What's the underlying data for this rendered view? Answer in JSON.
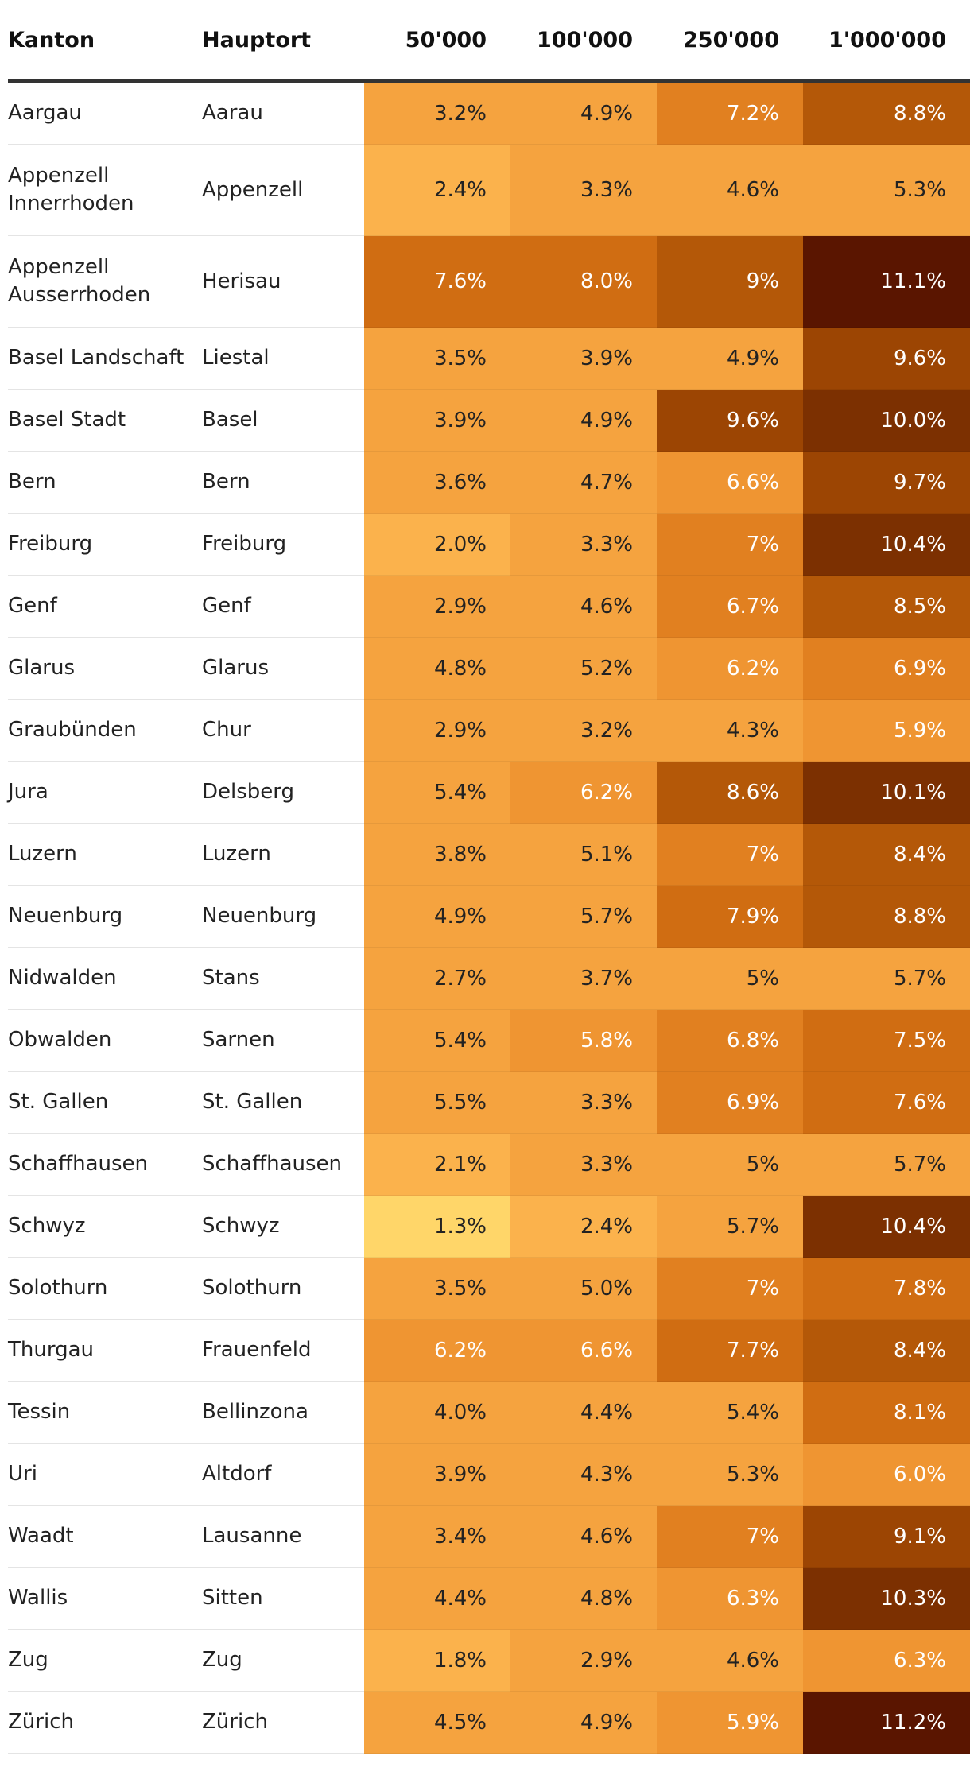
{
  "chart_data": {
    "type": "table",
    "columns": [
      "Kanton",
      "Hauptort",
      "50'000",
      "100'000",
      "250'000",
      "1'000'000"
    ],
    "rows": [
      {
        "kanton": "Aargau",
        "hauptort": "Aarau",
        "values": [
          "3.2%",
          "4.9%",
          "7.2%",
          "8.8%"
        ]
      },
      {
        "kanton": "Appenzell Innerrhoden",
        "hauptort": "Appenzell",
        "values": [
          "2.4%",
          "3.3%",
          "4.6%",
          "5.3%"
        ]
      },
      {
        "kanton": "Appenzell Ausserrhoden",
        "hauptort": "Herisau",
        "values": [
          "7.6%",
          "8.0%",
          "9%",
          "11.1%"
        ]
      },
      {
        "kanton": "Basel Landschaft",
        "hauptort": "Liestal",
        "values": [
          "3.5%",
          "3.9%",
          "4.9%",
          "9.6%"
        ]
      },
      {
        "kanton": "Basel Stadt",
        "hauptort": "Basel",
        "values": [
          "3.9%",
          "4.9%",
          "9.6%",
          "10.0%"
        ]
      },
      {
        "kanton": "Bern",
        "hauptort": "Bern",
        "values": [
          "3.6%",
          "4.7%",
          "6.6%",
          "9.7%"
        ]
      },
      {
        "kanton": "Freiburg",
        "hauptort": "Freiburg",
        "values": [
          "2.0%",
          "3.3%",
          "7%",
          "10.4%"
        ]
      },
      {
        "kanton": "Genf",
        "hauptort": "Genf",
        "values": [
          "2.9%",
          "4.6%",
          "6.7%",
          "8.5%"
        ]
      },
      {
        "kanton": "Glarus",
        "hauptort": "Glarus",
        "values": [
          "4.8%",
          "5.2%",
          "6.2%",
          "6.9%"
        ]
      },
      {
        "kanton": "Graubünden",
        "hauptort": "Chur",
        "values": [
          "2.9%",
          "3.2%",
          "4.3%",
          "5.9%"
        ]
      },
      {
        "kanton": "Jura",
        "hauptort": "Delsberg",
        "values": [
          "5.4%",
          "6.2%",
          "8.6%",
          "10.1%"
        ]
      },
      {
        "kanton": "Luzern",
        "hauptort": "Luzern",
        "values": [
          "3.8%",
          "5.1%",
          "7%",
          "8.4%"
        ]
      },
      {
        "kanton": "Neuenburg",
        "hauptort": "Neuenburg",
        "values": [
          "4.9%",
          "5.7%",
          "7.9%",
          "8.8%"
        ]
      },
      {
        "kanton": "Nidwalden",
        "hauptort": "Stans",
        "values": [
          "2.7%",
          "3.7%",
          "5%",
          "5.7%"
        ]
      },
      {
        "kanton": "Obwalden",
        "hauptort": "Sarnen",
        "values": [
          "5.4%",
          "5.8%",
          "6.8%",
          "7.5%"
        ]
      },
      {
        "kanton": "St. Gallen",
        "hauptort": "St. Gallen",
        "values": [
          "5.5%",
          "3.3%",
          "6.9%",
          "7.6%"
        ]
      },
      {
        "kanton": "Schaffhausen",
        "hauptort": "Schaffhausen",
        "values": [
          "2.1%",
          "3.3%",
          "5%",
          "5.7%"
        ]
      },
      {
        "kanton": "Schwyz",
        "hauptort": "Schwyz",
        "values": [
          "1.3%",
          "2.4%",
          "5.7%",
          "10.4%"
        ]
      },
      {
        "kanton": "Solothurn",
        "hauptort": "Solothurn",
        "values": [
          "3.5%",
          "5.0%",
          "7%",
          "7.8%"
        ]
      },
      {
        "kanton": "Thurgau",
        "hauptort": "Frauenfeld",
        "values": [
          "6.2%",
          "6.6%",
          "7.7%",
          "8.4%"
        ]
      },
      {
        "kanton": "Tessin",
        "hauptort": "Bellinzona",
        "values": [
          "4.0%",
          "4.4%",
          "5.4%",
          "8.1%"
        ]
      },
      {
        "kanton": "Uri",
        "hauptort": "Altdorf",
        "values": [
          "3.9%",
          "4.3%",
          "5.3%",
          "6.0%"
        ]
      },
      {
        "kanton": "Waadt",
        "hauptort": "Lausanne",
        "values": [
          "3.4%",
          "4.6%",
          "7%",
          "9.1%"
        ]
      },
      {
        "kanton": "Wallis",
        "hauptort": "Sitten",
        "values": [
          "4.4%",
          "4.8%",
          "6.3%",
          "10.3%"
        ]
      },
      {
        "kanton": "Zug",
        "hauptort": "Zug",
        "values": [
          "1.8%",
          "2.9%",
          "4.6%",
          "6.3%"
        ]
      },
      {
        "kanton": "Zürich",
        "hauptort": "Zürich",
        "values": [
          "4.5%",
          "4.9%",
          "5.9%",
          "11.2%"
        ]
      }
    ]
  },
  "colors": {
    "scale": [
      "#FFD669",
      "#FBB24C",
      "#F5A33F",
      "#EF9532",
      "#E18020",
      "#D06D12",
      "#B45808",
      "#9C4503",
      "#7C3001",
      "#5A1500"
    ],
    "header_rule": "#333333",
    "dark_text": "#222222",
    "light_text": "#FFFFFF"
  }
}
